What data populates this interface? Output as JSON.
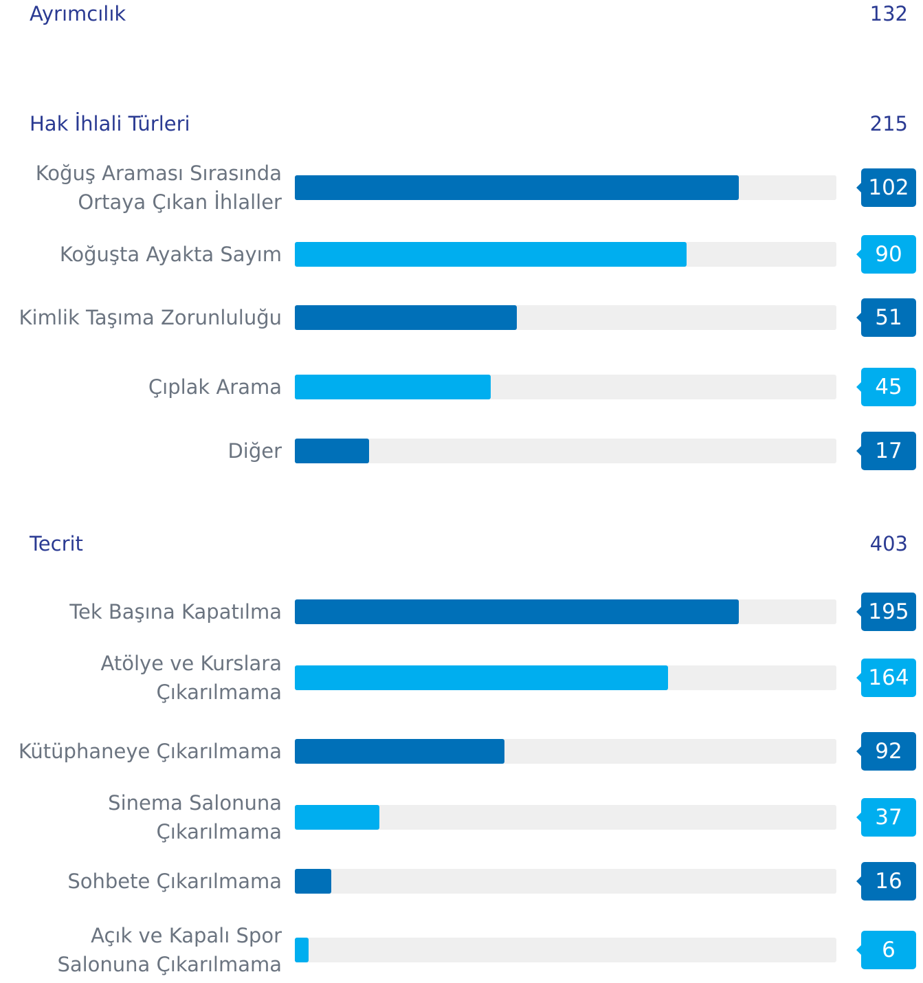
{
  "sections": [
    {
      "title": "Ayrımcılık",
      "total": 132
    },
    {
      "title": "Hak İhlali Türleri",
      "total": 215,
      "items": [
        {
          "label": "Koğuş Araması Sırasında\nOrtaya Çıkan İhlaller",
          "value": 102
        },
        {
          "label": "Koğuşta Ayakta Sayım",
          "value": 90
        },
        {
          "label": "Kimlik Taşıma Zorunluluğu",
          "value": 51
        },
        {
          "label": "Çıplak Arama",
          "value": 45
        },
        {
          "label": "Diğer",
          "value": 17
        }
      ]
    },
    {
      "title": "Tecrit",
      "total": 403,
      "items": [
        {
          "label": "Tek Başına Kapatılma",
          "value": 195
        },
        {
          "label": "Atölye ve Kurslara\nÇıkarılmama",
          "value": 164
        },
        {
          "label": "Kütüphaneye Çıkarılmama",
          "value": 92
        },
        {
          "label": "Sinema Salonuna\nÇıkarılmama",
          "value": 37
        },
        {
          "label": "Sohbete Çıkarılmama",
          "value": 16
        },
        {
          "label": "Açık ve Kapalı Spor\nSalonuna Çıkarılmama",
          "value": 6
        }
      ]
    }
  ]
}
